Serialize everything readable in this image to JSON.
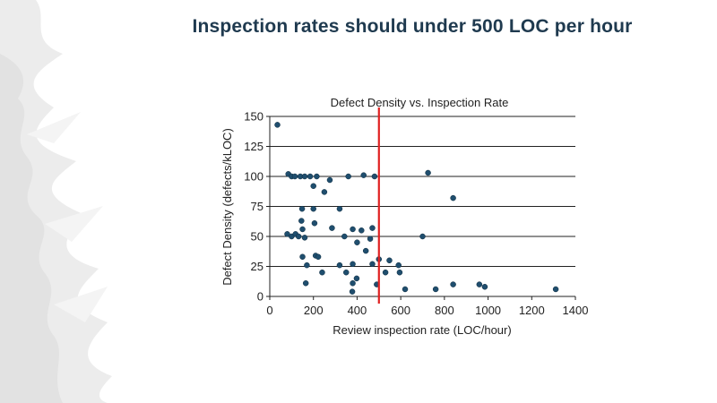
{
  "slide": {
    "title": "Inspection rates should under 500 LOC per hour"
  },
  "colors": {
    "title": "#1f3a4f",
    "point": "#1f4e6e",
    "threshold_line": "#e02020",
    "grid": "#222222",
    "decoration": "#e7e7e7"
  },
  "chart_data": {
    "type": "scatter",
    "title": "Defect Density vs. Inspection Rate",
    "xlabel": "Review inspection rate (LOC/hour)",
    "ylabel": "Defect Density (defects/kLOC)",
    "xlim": [
      0,
      1400
    ],
    "ylim": [
      0,
      150
    ],
    "xticks": [
      0,
      200,
      400,
      600,
      800,
      1000,
      1200,
      1400
    ],
    "yticks": [
      0,
      25,
      50,
      75,
      100,
      125,
      150
    ],
    "grid": "horizontal",
    "threshold_x": 500,
    "points": [
      [
        35,
        143
      ],
      [
        85,
        102
      ],
      [
        100,
        100
      ],
      [
        115,
        100
      ],
      [
        140,
        100
      ],
      [
        160,
        100
      ],
      [
        185,
        100
      ],
      [
        200,
        92
      ],
      [
        215,
        100
      ],
      [
        250,
        87
      ],
      [
        275,
        97
      ],
      [
        360,
        100
      ],
      [
        430,
        101
      ],
      [
        480,
        100
      ],
      [
        725,
        103
      ],
      [
        840,
        82
      ],
      [
        148,
        73
      ],
      [
        200,
        73
      ],
      [
        145,
        63
      ],
      [
        205,
        61
      ],
      [
        150,
        56
      ],
      [
        285,
        57
      ],
      [
        80,
        52
      ],
      [
        100,
        50
      ],
      [
        118,
        52
      ],
      [
        132,
        50
      ],
      [
        160,
        49
      ],
      [
        320,
        73
      ],
      [
        342,
        50
      ],
      [
        380,
        56
      ],
      [
        400,
        45
      ],
      [
        420,
        55
      ],
      [
        460,
        48
      ],
      [
        470,
        57
      ],
      [
        700,
        50
      ],
      [
        150,
        33
      ],
      [
        210,
        34
      ],
      [
        222,
        33
      ],
      [
        170,
        26
      ],
      [
        240,
        20
      ],
      [
        320,
        26
      ],
      [
        350,
        20
      ],
      [
        380,
        27
      ],
      [
        398,
        15
      ],
      [
        440,
        38
      ],
      [
        470,
        27
      ],
      [
        500,
        31
      ],
      [
        530,
        20
      ],
      [
        548,
        30
      ],
      [
        590,
        26
      ],
      [
        595,
        20
      ],
      [
        165,
        11
      ],
      [
        380,
        11
      ],
      [
        378,
        4
      ],
      [
        490,
        10
      ],
      [
        620,
        6
      ],
      [
        760,
        6
      ],
      [
        840,
        10
      ],
      [
        960,
        10
      ],
      [
        985,
        8
      ],
      [
        1310,
        6
      ]
    ]
  }
}
